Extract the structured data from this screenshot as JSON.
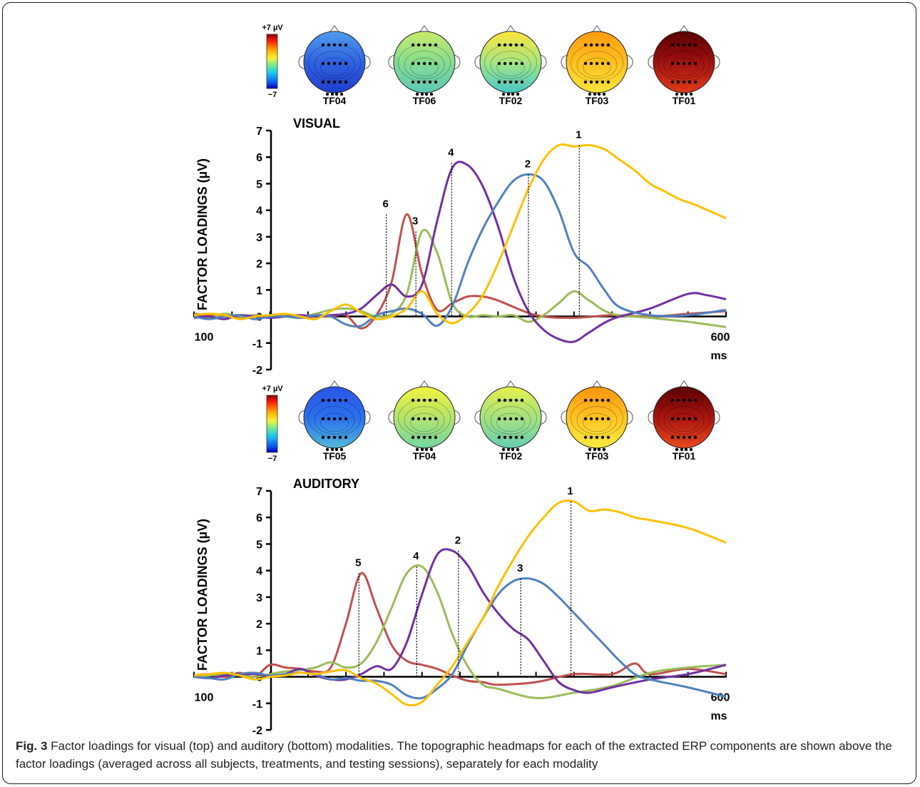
{
  "figure_label": "Fig. 3",
  "caption": "Factor loadings for visual (top) and auditory (bottom) modalities. The topographic headmaps for each of the extracted ERP components are shown above the factor loadings (averaged across all subjects, treatments, and testing sessions), separately for each modality",
  "colors": {
    "red": "#c0504d",
    "green": "#9bbb59",
    "purple": "#7030a0",
    "blue": "#4f81bd",
    "yellow": "#ffc000"
  },
  "chart_data": [
    {
      "type": "line",
      "title": "VISUAL",
      "ylabel": "FACTOR LOADINGS (µV)",
      "xlabel": "ms",
      "x_tick_labels": [
        "100",
        "600"
      ],
      "xlim": [
        -100,
        600
      ],
      "ylim": [
        -2,
        7
      ],
      "yticks": [
        -2,
        -1,
        0,
        1,
        2,
        3,
        4,
        5,
        6,
        7
      ],
      "colorbar": {
        "max_label": "+7 µV",
        "min_label": "−7"
      },
      "headmaps": [
        {
          "label": "TF04",
          "colors": [
            "#4f9cf0",
            "#2f62e0",
            "#1f3ecf"
          ]
        },
        {
          "label": "TF06",
          "colors": [
            "#c8ec6a",
            "#86dc90",
            "#5cc9b8"
          ]
        },
        {
          "label": "TF02",
          "colors": [
            "#ffe43a",
            "#a6e683",
            "#46c8c8"
          ]
        },
        {
          "label": "TF03",
          "colors": [
            "#ff9a10",
            "#ffc020",
            "#ffe43a"
          ]
        },
        {
          "label": "TF01",
          "colors": [
            "#5a0000",
            "#9e1010",
            "#e03a1a"
          ]
        }
      ],
      "series": [
        {
          "color": "#c0504d",
          "x": [
            -100,
            -80,
            -60,
            -40,
            -20,
            0,
            20,
            40,
            60,
            80,
            100,
            120,
            140,
            160,
            180,
            200,
            220,
            240,
            260,
            280,
            300,
            350,
            400,
            450,
            500,
            550,
            600
          ],
          "y": [
            0.1,
            0.05,
            0,
            -0.05,
            0.05,
            0,
            0.05,
            -0.05,
            0,
            0,
            0.05,
            -0.45,
            0.05,
            1.3,
            3.85,
            1.6,
            0.25,
            0.5,
            0.75,
            0.75,
            0.6,
            0.05,
            -0.05,
            0.05,
            0,
            0.1,
            0.2
          ]
        },
        {
          "color": "#9bbb59",
          "x": [
            -100,
            -80,
            -60,
            -40,
            -20,
            0,
            20,
            40,
            60,
            80,
            100,
            120,
            140,
            160,
            180,
            200,
            220,
            240,
            260,
            280,
            300,
            320,
            340,
            360,
            380,
            400,
            420,
            450,
            500,
            550,
            600
          ],
          "y": [
            0,
            -0.05,
            0.1,
            0,
            0.05,
            0,
            0.05,
            0,
            0.1,
            0.25,
            0.3,
            0.2,
            0,
            0.1,
            0.85,
            3.2,
            2.4,
            0.5,
            0,
            0.05,
            0,
            0.05,
            -0.2,
            0.05,
            0.5,
            0.95,
            0.6,
            0.1,
            -0.05,
            -0.2,
            -0.4
          ]
        },
        {
          "color": "#7030a0",
          "x": [
            -100,
            -80,
            -60,
            -40,
            -20,
            0,
            20,
            40,
            60,
            80,
            100,
            120,
            140,
            160,
            180,
            200,
            220,
            240,
            260,
            280,
            300,
            320,
            340,
            360,
            380,
            400,
            420,
            450,
            500,
            550,
            575,
            600
          ],
          "y": [
            -0.05,
            0,
            -0.1,
            0.05,
            0,
            -0.05,
            0,
            0.05,
            0,
            0.05,
            0.1,
            0.3,
            0.8,
            1.2,
            0.75,
            1.2,
            3.6,
            5.6,
            5.7,
            4.9,
            3.4,
            1.5,
            0.2,
            -0.5,
            -0.85,
            -0.95,
            -0.6,
            -0.1,
            0.3,
            0.85,
            0.8,
            0.65
          ]
        },
        {
          "color": "#4f81bd",
          "x": [
            -100,
            -80,
            -60,
            -40,
            -20,
            0,
            20,
            40,
            60,
            80,
            100,
            120,
            140,
            160,
            180,
            200,
            220,
            240,
            260,
            280,
            300,
            320,
            340,
            360,
            380,
            400,
            420,
            440,
            460,
            500,
            550,
            600
          ],
          "y": [
            0,
            -0.1,
            0,
            0.05,
            -0.1,
            0,
            0,
            -0.05,
            0.05,
            0,
            -0.3,
            -0.35,
            0.05,
            0.2,
            0.3,
            0.1,
            -0.35,
            0.4,
            2.0,
            3.3,
            4.3,
            5.1,
            5.35,
            5.1,
            4.0,
            2.4,
            1.85,
            1.0,
            0.35,
            0.05,
            0.05,
            0.25
          ]
        },
        {
          "color": "#ffc000",
          "x": [
            -100,
            -80,
            -60,
            -40,
            -20,
            0,
            20,
            40,
            60,
            80,
            100,
            120,
            140,
            160,
            180,
            200,
            220,
            240,
            260,
            280,
            300,
            320,
            340,
            360,
            380,
            400,
            420,
            440,
            460,
            480,
            500,
            520,
            540,
            560,
            600
          ],
          "y": [
            0.05,
            0.1,
            0.05,
            -0.1,
            0,
            0.05,
            0.1,
            0,
            -0.1,
            0.2,
            0.45,
            0.15,
            -0.1,
            0,
            0.3,
            0.95,
            0.1,
            -0.25,
            0.1,
            0.8,
            2.0,
            3.4,
            4.8,
            5.9,
            6.45,
            6.4,
            6.45,
            6.3,
            5.9,
            5.5,
            5.0,
            4.7,
            4.4,
            4.2,
            3.7
          ]
        }
      ],
      "markers": [
        {
          "label": "6",
          "x": 153,
          "y": 3.85
        },
        {
          "label": "3",
          "x": 192,
          "y": 3.2
        },
        {
          "label": "4",
          "x": 239,
          "y": 5.78
        },
        {
          "label": "2",
          "x": 340,
          "y": 5.35
        },
        {
          "label": "1",
          "x": 407,
          "y": 6.45
        }
      ]
    },
    {
      "type": "line",
      "title": "AUDITORY",
      "ylabel": "FACTOR LOADINGS (µV)",
      "xlabel": "ms",
      "x_tick_labels": [
        "100",
        "600"
      ],
      "xlim": [
        -100,
        600
      ],
      "ylim": [
        -2,
        7
      ],
      "yticks": [
        -2,
        -1,
        0,
        1,
        2,
        3,
        4,
        5,
        6,
        7
      ],
      "colorbar": {
        "max_label": "+7 µV",
        "min_label": "−7"
      },
      "headmaps": [
        {
          "label": "TF05",
          "colors": [
            "#2a55e6",
            "#2a70ee",
            "#52b8d8"
          ]
        },
        {
          "label": "TF04",
          "colors": [
            "#f2f23c",
            "#b4e46c",
            "#72d6a2"
          ]
        },
        {
          "label": "TF02",
          "colors": [
            "#e4f04a",
            "#a6e280",
            "#66cfb0"
          ]
        },
        {
          "label": "TF03",
          "colors": [
            "#ff9410",
            "#ffc322",
            "#fbec40"
          ]
        },
        {
          "label": "TF01",
          "colors": [
            "#5a0000",
            "#a81410",
            "#ea4a1e"
          ]
        }
      ],
      "series": [
        {
          "color": "#c0504d",
          "x": [
            -100,
            -80,
            -60,
            -40,
            -20,
            0,
            20,
            40,
            60,
            80,
            100,
            120,
            140,
            160,
            180,
            200,
            220,
            240,
            260,
            280,
            300,
            350,
            400,
            450,
            480,
            500,
            550,
            600
          ],
          "y": [
            0.05,
            0.1,
            0,
            0.15,
            0,
            0.45,
            0.35,
            0.3,
            0.2,
            0.35,
            2.0,
            3.9,
            2.6,
            1.2,
            0.6,
            0.45,
            0.3,
            0.05,
            -0.15,
            -0.2,
            -0.3,
            -0.2,
            0.1,
            0.1,
            0.5,
            0.1,
            0.3,
            0.1
          ]
        },
        {
          "color": "#9bbb59",
          "x": [
            -100,
            -80,
            -60,
            -40,
            -20,
            0,
            20,
            40,
            60,
            80,
            100,
            120,
            140,
            160,
            180,
            200,
            220,
            240,
            260,
            280,
            300,
            350,
            400,
            450,
            500,
            550,
            600
          ],
          "y": [
            0,
            0.05,
            0.1,
            0.05,
            0,
            0.1,
            0.2,
            0.25,
            0.35,
            0.55,
            0.35,
            0.5,
            1.3,
            2.6,
            3.9,
            4.15,
            3.2,
            1.6,
            0.4,
            -0.3,
            -0.45,
            -0.8,
            -0.6,
            -0.35,
            0.15,
            0.35,
            0.45
          ]
        },
        {
          "color": "#7030a0",
          "x": [
            -100,
            -80,
            -60,
            -40,
            -20,
            0,
            20,
            40,
            60,
            80,
            100,
            120,
            140,
            160,
            180,
            200,
            220,
            240,
            260,
            280,
            300,
            320,
            340,
            360,
            380,
            400,
            420,
            450,
            500,
            550,
            600
          ],
          "y": [
            0,
            -0.05,
            0.05,
            0.1,
            0.1,
            0.05,
            0.1,
            0.3,
            0.05,
            -0.1,
            -0.1,
            0.1,
            0.4,
            0.3,
            1.3,
            3.1,
            4.6,
            4.75,
            4.2,
            3.2,
            2.4,
            1.8,
            1.4,
            0.6,
            -0.2,
            -0.5,
            -0.6,
            -0.4,
            -0.1,
            0.1,
            0.45
          ]
        },
        {
          "color": "#4f81bd",
          "x": [
            -100,
            -80,
            -60,
            -40,
            -20,
            0,
            20,
            40,
            60,
            80,
            100,
            120,
            140,
            160,
            180,
            200,
            220,
            240,
            260,
            280,
            300,
            320,
            340,
            360,
            380,
            400,
            420,
            440,
            460,
            480,
            500,
            550,
            600
          ],
          "y": [
            0,
            -0.05,
            -0.1,
            0.1,
            0.15,
            0.05,
            0.1,
            0.15,
            0.1,
            -0.1,
            -0.05,
            -0.15,
            -0.15,
            -0.3,
            -0.7,
            -0.8,
            -0.45,
            0.1,
            1.2,
            2.2,
            3.1,
            3.6,
            3.7,
            3.5,
            3.0,
            2.4,
            1.8,
            1.2,
            0.6,
            0.1,
            -0.1,
            -0.4,
            -0.75
          ]
        },
        {
          "color": "#ffc000",
          "x": [
            -100,
            -80,
            -60,
            -40,
            -20,
            0,
            20,
            40,
            60,
            80,
            100,
            120,
            140,
            160,
            180,
            200,
            220,
            240,
            260,
            280,
            300,
            320,
            340,
            360,
            380,
            400,
            420,
            440,
            460,
            480,
            500,
            550,
            600
          ],
          "y": [
            0.05,
            0.1,
            0.15,
            0.05,
            -0.1,
            0,
            0.05,
            0.15,
            0.1,
            0.2,
            0.25,
            -0.05,
            -0.25,
            -0.65,
            -1.05,
            -0.95,
            -0.3,
            0.4,
            1.3,
            2.2,
            3.4,
            4.4,
            5.3,
            6.0,
            6.55,
            6.6,
            6.25,
            6.3,
            6.2,
            6.0,
            5.9,
            5.6,
            5.05
          ]
        }
      ],
      "markers": [
        {
          "label": "5",
          "x": 117,
          "y": 3.9
        },
        {
          "label": "4",
          "x": 193,
          "y": 4.15
        },
        {
          "label": "2",
          "x": 248,
          "y": 4.75
        },
        {
          "label": "3",
          "x": 330,
          "y": 3.7
        },
        {
          "label": "1",
          "x": 396,
          "y": 6.6
        }
      ]
    }
  ]
}
